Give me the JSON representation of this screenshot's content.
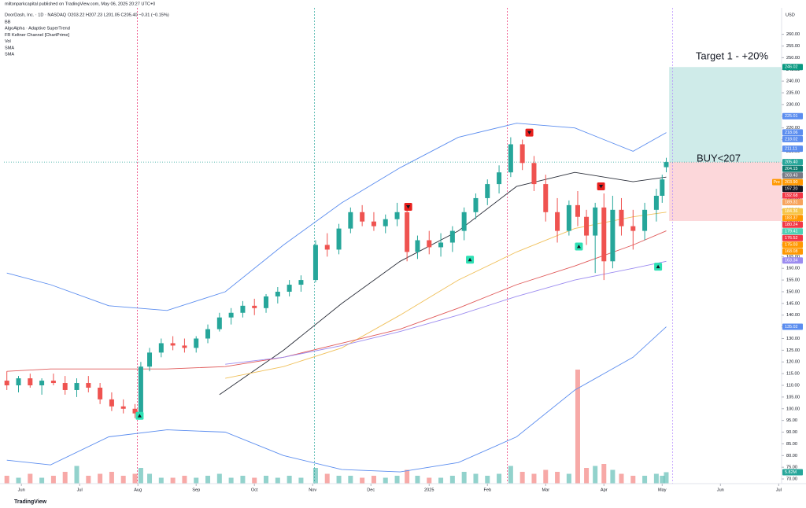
{
  "header": {
    "publisher": "miltonparkcapital published on TradingView.com, May 06, 2025 20:27 UTC+0",
    "symbol": "DoorDash, Inc. · 1D · NASDAQ",
    "ohlc": "O203.22 H207.23 L201.05 C205.40 −0.31 (−0.15%)",
    "indicators": [
      "BB",
      "AlgoAlpha · Adaptive SuperTrend",
      "FR Keltner Channel [ChartPrime]",
      "Vol",
      "SMA",
      "SMA"
    ],
    "currency": "USD",
    "logo": "TradingView"
  },
  "chart_data": {
    "type": "candlestick",
    "x": [
      5.75,
      5.95,
      6.15,
      6.35,
      6.55,
      6.75,
      6.95,
      7.15,
      7.35,
      7.55,
      7.75,
      7.95,
      8.05,
      8.2,
      8.4,
      8.6,
      8.8,
      9.0,
      9.2,
      9.4,
      9.6,
      9.8,
      10.0,
      10.2,
      10.4,
      10.6,
      10.8,
      11.05,
      11.25,
      11.45,
      11.65,
      11.85,
      12.05,
      12.25,
      12.45,
      12.62,
      12.8,
      13.0,
      13.2,
      13.4,
      13.6,
      13.8,
      14.0,
      14.2,
      14.4,
      14.6,
      14.8,
      15.0,
      15.2,
      15.4,
      15.55,
      15.7,
      15.85,
      16.0,
      16.15,
      16.3,
      16.5,
      16.7,
      16.9,
      17.0,
      17.07
    ],
    "open": [
      112,
      110,
      113,
      110,
      112,
      111,
      108,
      111,
      109,
      104,
      101,
      100,
      98,
      118,
      124,
      128,
      127,
      126,
      130,
      134,
      139,
      141,
      144,
      143,
      148,
      150,
      153,
      155,
      170,
      168,
      177,
      184,
      180,
      178,
      181,
      184,
      167,
      172,
      169,
      171,
      176,
      184,
      190,
      196,
      201,
      213,
      205,
      196,
      184,
      176,
      187,
      182,
      174,
      186,
      163,
      185,
      178,
      176,
      185,
      191,
      203.22
    ],
    "high": [
      116,
      114,
      115,
      113,
      115,
      114,
      113,
      114,
      111,
      107,
      104,
      102,
      120,
      126,
      130,
      131,
      130,
      131,
      136,
      141,
      143,
      146,
      147,
      149,
      152,
      155,
      157,
      172,
      175,
      179,
      186,
      187,
      184,
      183,
      188,
      186,
      174,
      176,
      175,
      178,
      186,
      192,
      198,
      204,
      216,
      215,
      208,
      200,
      190,
      189,
      193,
      185,
      188,
      192,
      191,
      190,
      185,
      188,
      194,
      200,
      207.23
    ],
    "low": [
      108,
      107,
      109,
      106,
      110,
      106,
      105,
      107,
      102,
      99,
      98,
      96,
      97,
      116,
      122,
      125,
      124,
      124,
      128,
      133,
      136,
      139,
      140,
      141,
      145,
      148,
      150,
      154,
      165,
      166,
      175,
      178,
      176,
      175,
      178,
      163,
      164,
      166,
      165,
      167,
      172,
      181,
      187,
      192,
      199,
      202,
      193,
      180,
      171,
      174,
      178,
      170,
      158,
      155,
      160,
      174,
      168,
      172,
      180,
      188,
      201.05
    ],
    "close": [
      110,
      113,
      110,
      112,
      111,
      108,
      111,
      109,
      104,
      101,
      100,
      98,
      118,
      124,
      128,
      127,
      126,
      130,
      134,
      139,
      141,
      144,
      143,
      148,
      150,
      153,
      155,
      170,
      168,
      177,
      184,
      180,
      178,
      181,
      184,
      167,
      172,
      169,
      171,
      176,
      184,
      190,
      196,
      201,
      213,
      205,
      196,
      184,
      176,
      187,
      182,
      174,
      186,
      163,
      185,
      178,
      176,
      185,
      191,
      198,
      205.4
    ],
    "up_color": "#26a69a",
    "down_color": "#ef5350",
    "volume": {
      "values": [
        4,
        3,
        5,
        3,
        4,
        6,
        9,
        4,
        5,
        6,
        4,
        5,
        8,
        5,
        3,
        3,
        4,
        3,
        4,
        5,
        3,
        4,
        3,
        4,
        3,
        4,
        3,
        8,
        5,
        4,
        4,
        3,
        4,
        3,
        4,
        7,
        4,
        3,
        3,
        4,
        6,
        5,
        4,
        5,
        9,
        6,
        5,
        7,
        6,
        5,
        58,
        8,
        9,
        10,
        7,
        5,
        4,
        4,
        5,
        4,
        5.82
      ],
      "up_color": "rgba(38,166,154,0.5)",
      "down_color": "rgba(239,83,80,0.5)",
      "y2lim": [
        0,
        60
      ],
      "tag": {
        "value": 5.82,
        "label": "5.82M",
        "color": "#26a69a"
      }
    },
    "xlim": [
      5.7,
      19.05
    ],
    "xticks": [
      {
        "value": 6,
        "label": "Jun"
      },
      {
        "value": 7,
        "label": "Jul"
      },
      {
        "value": 8,
        "label": "Aug"
      },
      {
        "value": 9,
        "label": "Sep"
      },
      {
        "value": 10,
        "label": "Oct"
      },
      {
        "value": 11,
        "label": "Nov"
      },
      {
        "value": 12,
        "label": "Dec"
      },
      {
        "value": 13,
        "label": "2025"
      },
      {
        "value": 14,
        "label": "Feb"
      },
      {
        "value": 15,
        "label": "Mar"
      },
      {
        "value": 16,
        "label": "Apr"
      },
      {
        "value": 17,
        "label": "May"
      },
      {
        "value": 18,
        "label": "Jun"
      },
      {
        "value": 19,
        "label": "Jul"
      }
    ],
    "ylim": [
      68,
      271.3
    ],
    "yticks": [
      {
        "value": 70,
        "label": "70.00"
      },
      {
        "value": 75,
        "label": "75.00"
      },
      {
        "value": 80,
        "label": "80.00"
      },
      {
        "value": 85,
        "label": "85.00"
      },
      {
        "value": 90,
        "label": "90.00"
      },
      {
        "value": 95,
        "label": "95.00"
      },
      {
        "value": 100,
        "label": "100.00"
      },
      {
        "value": 105,
        "label": "105.00"
      },
      {
        "value": 110,
        "label": "110.00"
      },
      {
        "value": 115,
        "label": "115.00"
      },
      {
        "value": 120,
        "label": "120.00"
      },
      {
        "value": 125,
        "label": "125.00"
      },
      {
        "value": 130,
        "label": "130.00"
      },
      {
        "value": 135,
        "label": "135.00"
      },
      {
        "value": 140,
        "label": "140.00"
      },
      {
        "value": 145,
        "label": "145.00"
      },
      {
        "value": 150,
        "label": "150.00"
      },
      {
        "value": 155,
        "label": "155.00"
      },
      {
        "value": 160,
        "label": "160.00"
      },
      {
        "value": 165,
        "label": "165.00"
      },
      {
        "value": 170,
        "label": "170.00"
      },
      {
        "value": 175,
        "label": "175.00"
      },
      {
        "value": 180,
        "label": "180.00"
      },
      {
        "value": 185,
        "label": "185.00"
      },
      {
        "value": 190,
        "label": "190.00"
      },
      {
        "value": 195,
        "label": "195.00"
      },
      {
        "value": 200,
        "label": "200.00"
      },
      {
        "value": 205,
        "label": "205.00"
      },
      {
        "value": 210,
        "label": "210.00"
      },
      {
        "value": 215,
        "label": "215.00"
      },
      {
        "value": 220,
        "label": "220.00"
      },
      {
        "value": 225,
        "label": "225.00"
      },
      {
        "value": 230,
        "label": "230.00"
      },
      {
        "value": 235,
        "label": "235.00"
      },
      {
        "value": 240,
        "label": "240.00"
      },
      {
        "value": 245,
        "label": "245.00"
      },
      {
        "value": 250,
        "label": "250.00"
      },
      {
        "value": 255,
        "label": "255.00"
      },
      {
        "value": 260,
        "label": "260.00"
      }
    ],
    "grid": false,
    "overlays": [
      {
        "color": "#5b8def",
        "x": [
          5.75,
          6.5,
          7.5,
          8.5,
          9.5,
          10.5,
          11.5,
          12.5,
          13.5,
          14.5,
          15.5,
          16.5,
          17.07
        ],
        "values": [
          158,
          153,
          144,
          142,
          150,
          170,
          188,
          203,
          216,
          222,
          220,
          210,
          218
        ]
      },
      {
        "color": "#5b8def",
        "x": [
          5.75,
          6.5,
          7.5,
          8.5,
          9.5,
          10.5,
          11.5,
          12.5,
          13.5,
          14.5,
          15.5,
          16.5,
          17.07
        ],
        "values": [
          78,
          76,
          88,
          91,
          90,
          80,
          74,
          73,
          77,
          88,
          108,
          122,
          135
        ]
      },
      {
        "color": "#2a2e39",
        "x": [
          9.4,
          10.5,
          11.5,
          12.5,
          13.5,
          14.5,
          15.5,
          16.5,
          17.07
        ],
        "values": [
          106,
          125,
          145,
          163,
          176,
          195,
          201,
          197,
          199
        ]
      },
      {
        "color": "#f0c05a",
        "x": [
          9.5,
          10.5,
          11.5,
          12.5,
          13.5,
          14.5,
          15.5,
          16.5,
          17.07
        ],
        "values": [
          113,
          118,
          126,
          140,
          155,
          167,
          177,
          182,
          184
        ]
      },
      {
        "color": "#e05a5a",
        "x": [
          5.75,
          6.5,
          7.5,
          8.5,
          9.5,
          10.5,
          11.5,
          12.5,
          13.5,
          14.5,
          15.5,
          16.5,
          17.07
        ],
        "values": [
          116,
          117,
          117,
          117,
          118,
          122,
          128,
          134,
          143,
          153,
          161,
          170,
          176
        ]
      },
      {
        "color": "#9c8cf0",
        "x": [
          9.5,
          10.5,
          11.5,
          12.5,
          13.5,
          14.5,
          15.5,
          16.5,
          17.07
        ],
        "values": [
          119,
          122,
          127,
          133,
          140,
          148,
          155,
          160,
          163
        ]
      }
    ],
    "event_lines": [
      {
        "x": 7.99,
        "color": "#e91e63"
      },
      {
        "x": 11.03,
        "color": "#26a69a"
      },
      {
        "x": 14.34,
        "color": "#e91e63"
      },
      {
        "x": 17.18,
        "color": "#b388ff"
      }
    ],
    "buy_signals": {
      "color": "#2de0b4",
      "x": [
        8.03,
        13.7,
        15.57,
        16.93
      ],
      "values": [
        97,
        163.7,
        169.3,
        160.7
      ]
    },
    "sell_signals": {
      "color": "#e8201d",
      "x": [
        12.64,
        14.72,
        15.95
      ],
      "values": [
        186.3,
        218,
        195
      ]
    },
    "zones": {
      "x_start": 17.12,
      "items": [
        {
          "top": 246.02,
          "bottom": 205.4,
          "color": "rgba(38,166,154,0.22)"
        },
        {
          "top": 205.4,
          "bottom": 180.24,
          "color": "rgba(242,54,69,0.2)"
        }
      ]
    },
    "annotations": [
      {
        "text": "Target 1 - +20%",
        "color": "#26a69a"
      },
      {
        "text": "BUY<207",
        "color": "#26a69a"
      }
    ],
    "price_tags": [
      {
        "value": 246.02,
        "label": "246.02",
        "color": "#089981"
      },
      {
        "value": 225.01,
        "label": "225.01",
        "color": "#5b8def"
      },
      {
        "value": 218.06,
        "label": "218.06",
        "color": "#5b8def"
      },
      {
        "value": 218.02,
        "label": "218.02",
        "color": "#5b8def"
      },
      {
        "value": 211.11,
        "label": "211.11",
        "color": "#5b8def"
      },
      {
        "value": 205.4,
        "label": "205.40",
        "color": "#26a69a"
      },
      {
        "value": 204.15,
        "label": "204.15",
        "color": "#0b7a6e"
      },
      {
        "value": 203.43,
        "label": "203.43",
        "color": "#787b86"
      },
      {
        "value": 203.9,
        "label": "203.90",
        "color": "#ff9800",
        "prefix": "Pre"
      },
      {
        "value": 197.2,
        "label": "197.20",
        "color": "#131722"
      },
      {
        "value": 192.68,
        "label": "192.68",
        "color": "#f23645"
      },
      {
        "value": 189.31,
        "label": "189.31",
        "color": "#f7a35c"
      },
      {
        "value": 184.36,
        "label": "184.36",
        "color": "#f7c548"
      },
      {
        "value": 183.37,
        "label": "183.37",
        "color": "#ff9800"
      },
      {
        "value": 180.24,
        "label": "180.24",
        "color": "#f23645"
      },
      {
        "value": 179.41,
        "label": "179.41",
        "color": "#4dd0b4"
      },
      {
        "value": 176.52,
        "label": "176.52",
        "color": "#f23645"
      },
      {
        "value": 175.03,
        "label": "175.03",
        "color": "#ff9800"
      },
      {
        "value": 168.08,
        "label": "168.08",
        "color": "#ff9800"
      },
      {
        "value": 163.34,
        "label": "163.34",
        "color": "#9c8cf0"
      },
      {
        "value": 135.02,
        "label": "135.02",
        "color": "#5b8def"
      }
    ]
  }
}
